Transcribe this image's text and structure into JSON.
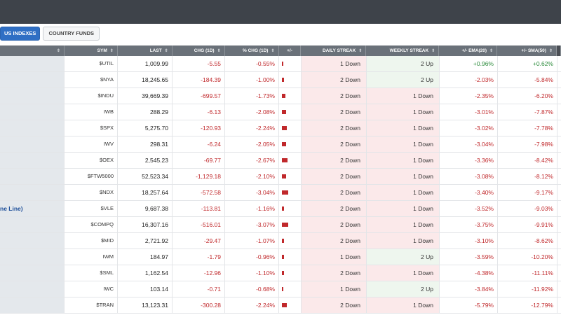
{
  "tabs": [
    {
      "label": "US INDEXES",
      "active": true
    },
    {
      "label": "COUNTRY FUNDS",
      "active": false
    }
  ],
  "columns": {
    "sym": "SYM",
    "last": "LAST",
    "chg": "CHG (1D)",
    "pct": "% CHG (1D)",
    "bar": "+/-",
    "daily": "DAILY STREAK",
    "weekly": "WEEKLY STREAK",
    "ema": "+/- EMA(20)",
    "sma": "+/- SMA(50)"
  },
  "colors": {
    "negative": "#c0282b",
    "positive": "#2a8a3a",
    "accent": "#2f6fc4",
    "header_bg": "#6a7179"
  },
  "rows": [
    {
      "name": "",
      "sym": "$UTIL",
      "last": "1,009.99",
      "chg": "-5.55",
      "pct": "-0.55%",
      "bar_pct": -0.55,
      "daily": "1 Down",
      "daily_dir": "down",
      "weekly": "2 Up",
      "weekly_dir": "up",
      "ema": "+0.96%",
      "sma": "+0.62%"
    },
    {
      "name": "",
      "sym": "$NYA",
      "last": "18,245.65",
      "chg": "-184.39",
      "pct": "-1.00%",
      "bar_pct": -1.0,
      "daily": "2 Down",
      "daily_dir": "down",
      "weekly": "2 Up",
      "weekly_dir": "up",
      "ema": "-2.03%",
      "sma": "-5.84%"
    },
    {
      "name": "",
      "sym": "$INDU",
      "last": "39,669.39",
      "chg": "-699.57",
      "pct": "-1.73%",
      "bar_pct": -1.73,
      "daily": "2 Down",
      "daily_dir": "down",
      "weekly": "1 Down",
      "weekly_dir": "down",
      "ema": "-2.35%",
      "sma": "-6.20%"
    },
    {
      "name": "",
      "sym": "IWB",
      "last": "288.29",
      "chg": "-6.13",
      "pct": "-2.08%",
      "bar_pct": -2.08,
      "daily": "2 Down",
      "daily_dir": "down",
      "weekly": "1 Down",
      "weekly_dir": "down",
      "ema": "-3.01%",
      "sma": "-7.87%"
    },
    {
      "name": "",
      "sym": "$SPX",
      "last": "5,275.70",
      "chg": "-120.93",
      "pct": "-2.24%",
      "bar_pct": -2.24,
      "daily": "2 Down",
      "daily_dir": "down",
      "weekly": "1 Down",
      "weekly_dir": "down",
      "ema": "-3.02%",
      "sma": "-7.78%"
    },
    {
      "name": "",
      "sym": "IWV",
      "last": "298.31",
      "chg": "-6.24",
      "pct": "-2.05%",
      "bar_pct": -2.05,
      "daily": "2 Down",
      "daily_dir": "down",
      "weekly": "1 Down",
      "weekly_dir": "down",
      "ema": "-3.04%",
      "sma": "-7.98%"
    },
    {
      "name": "",
      "sym": "$OEX",
      "last": "2,545.23",
      "chg": "-69.77",
      "pct": "-2.67%",
      "bar_pct": -2.67,
      "daily": "2 Down",
      "daily_dir": "down",
      "weekly": "1 Down",
      "weekly_dir": "down",
      "ema": "-3.36%",
      "sma": "-8.42%"
    },
    {
      "name": "",
      "sym": "$FTW5000",
      "last": "52,523.34",
      "chg": "-1,129.18",
      "pct": "-2.10%",
      "bar_pct": -2.1,
      "daily": "2 Down",
      "daily_dir": "down",
      "weekly": "1 Down",
      "weekly_dir": "down",
      "ema": "-3.08%",
      "sma": "-8.12%"
    },
    {
      "name": "",
      "sym": "$NDX",
      "last": "18,257.64",
      "chg": "-572.58",
      "pct": "-3.04%",
      "bar_pct": -3.04,
      "daily": "2 Down",
      "daily_dir": "down",
      "weekly": "1 Down",
      "weekly_dir": "down",
      "ema": "-3.40%",
      "sma": "-9.17%"
    },
    {
      "name": "ne Line)",
      "sym": "$VLE",
      "last": "9,687.38",
      "chg": "-113.81",
      "pct": "-1.16%",
      "bar_pct": -1.16,
      "daily": "2 Down",
      "daily_dir": "down",
      "weekly": "1 Down",
      "weekly_dir": "down",
      "ema": "-3.52%",
      "sma": "-9.03%"
    },
    {
      "name": "",
      "sym": "$COMPQ",
      "last": "16,307.16",
      "chg": "-516.01",
      "pct": "-3.07%",
      "bar_pct": -3.07,
      "daily": "2 Down",
      "daily_dir": "down",
      "weekly": "1 Down",
      "weekly_dir": "down",
      "ema": "-3.75%",
      "sma": "-9.91%"
    },
    {
      "name": "",
      "sym": "$MID",
      "last": "2,721.92",
      "chg": "-29.47",
      "pct": "-1.07%",
      "bar_pct": -1.07,
      "daily": "2 Down",
      "daily_dir": "down",
      "weekly": "1 Down",
      "weekly_dir": "down",
      "ema": "-3.10%",
      "sma": "-8.62%"
    },
    {
      "name": "",
      "sym": "IWM",
      "last": "184.97",
      "chg": "-1.79",
      "pct": "-0.96%",
      "bar_pct": -0.96,
      "daily": "1 Down",
      "daily_dir": "down",
      "weekly": "2 Up",
      "weekly_dir": "up",
      "ema": "-3.59%",
      "sma": "-10.20%"
    },
    {
      "name": "",
      "sym": "$SML",
      "last": "1,162.54",
      "chg": "-12.96",
      "pct": "-1.10%",
      "bar_pct": -1.1,
      "daily": "2 Down",
      "daily_dir": "down",
      "weekly": "1 Down",
      "weekly_dir": "down",
      "ema": "-4.38%",
      "sma": "-11.11%"
    },
    {
      "name": "",
      "sym": "IWC",
      "last": "103.14",
      "chg": "-0.71",
      "pct": "-0.68%",
      "bar_pct": -0.68,
      "daily": "1 Down",
      "daily_dir": "down",
      "weekly": "2 Up",
      "weekly_dir": "up",
      "ema": "-3.84%",
      "sma": "-11.92%"
    },
    {
      "name": "",
      "sym": "$TRAN",
      "last": "13,123.31",
      "chg": "-300.28",
      "pct": "-2.24%",
      "bar_pct": -2.24,
      "daily": "2 Down",
      "daily_dir": "down",
      "weekly": "1 Down",
      "weekly_dir": "down",
      "ema": "-5.79%",
      "sma": "-12.79%"
    }
  ]
}
